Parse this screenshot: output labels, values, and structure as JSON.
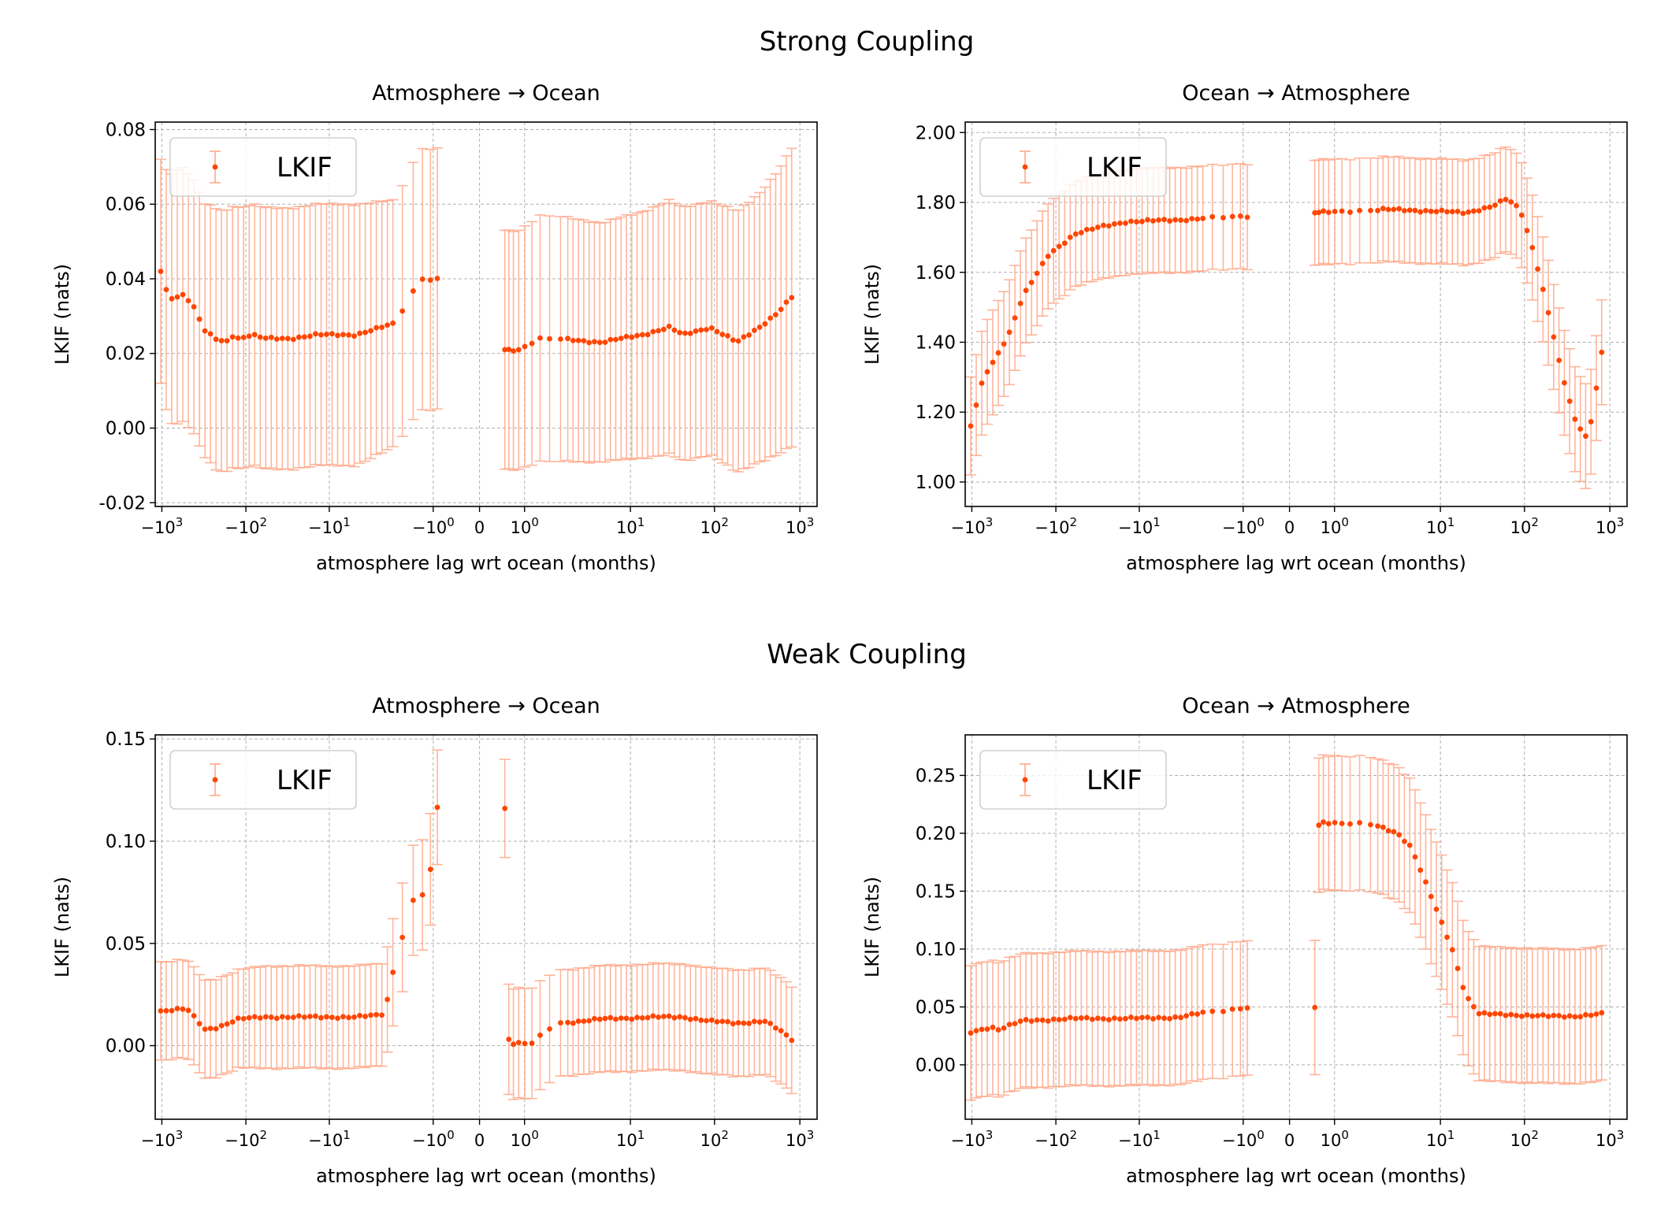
{
  "figure": {
    "row_titles": [
      "Strong Coupling",
      "Weak Coupling"
    ]
  },
  "colors": {
    "marker": "#ff4500",
    "errorbar": "#ffa98a",
    "grid": "#b0b0b0",
    "axis": "#000000"
  },
  "chart_data": [
    {
      "type": "scatter",
      "row": "Strong Coupling",
      "title": "Atmosphere → Ocean",
      "xlabel": "atmosphere lag wrt ocean (months)",
      "ylabel": "LKIF (nats)",
      "xscale": "symlog",
      "xticks": [
        "-10³",
        "-10²",
        "-10¹",
        "-10⁰",
        "0",
        "10⁰",
        "10¹",
        "10²",
        "10³"
      ],
      "ylim": [
        -0.021,
        0.082
      ],
      "yticks": [
        -0.02,
        0.0,
        0.02,
        0.04,
        0.06,
        0.08
      ],
      "yticklabels": [
        "-0.02",
        "0.00",
        "0.02",
        "0.04",
        "0.06",
        "0.08"
      ],
      "legend": "upper left",
      "grid": true,
      "series": [
        {
          "name": "LKIF",
          "segments": [
            {
              "side": "neg",
              "from": -600,
              "to": -0.5,
              "keys": [
                0,
                0.03,
                0.06,
                0.09,
                0.13,
                0.17,
                0.21,
                0.25,
                0.28,
                0.3,
                0.35,
                0.4,
                0.5,
                0.6,
                0.75,
                0.9,
                0.95,
                1
              ],
              "vals": [
                0.042,
                0.035,
                0.035,
                0.036,
                0.032,
                0.026,
                0.024,
                0.023,
                0.025,
                0.024,
                0.025,
                0.024,
                0.024,
                0.025,
                0.025,
                0.028,
                0.04,
                0.04
              ],
              "errs": [
                0.03,
                0.033,
                0.034,
                0.034,
                0.034,
                0.034,
                0.035,
                0.035,
                0.035,
                0.035,
                0.035,
                0.035,
                0.035,
                0.035,
                0.035,
                0.033,
                0.035,
                0.035
              ]
            },
            {
              "side": "pos",
              "from": 0.3,
              "to": 500,
              "keys": [
                0,
                0.06,
                0.12,
                0.3,
                0.45,
                0.55,
                0.6,
                0.7,
                0.8,
                0.88,
                0.95,
                1
              ],
              "vals": [
                0.021,
                0.021,
                0.024,
                0.023,
                0.025,
                0.027,
                0.025,
                0.027,
                0.023,
                0.027,
                0.031,
                0.035
              ],
              "errs": [
                0.032,
                0.032,
                0.033,
                0.032,
                0.033,
                0.034,
                0.034,
                0.034,
                0.035,
                0.036,
                0.038,
                0.04
              ]
            }
          ]
        }
      ]
    },
    {
      "type": "scatter",
      "row": "Strong Coupling",
      "title": "Ocean → Atmosphere",
      "xlabel": "atmosphere lag wrt ocean (months)",
      "ylabel": "LKIF (nats)",
      "xscale": "symlog",
      "xticks": [
        "-10³",
        "-10²",
        "-10¹",
        "-10⁰",
        "0",
        "10⁰",
        "10¹",
        "10²",
        "10³"
      ],
      "ylim": [
        0.93,
        2.03
      ],
      "yticks": [
        1.0,
        1.2,
        1.4,
        1.6,
        1.8,
        2.0
      ],
      "yticklabels": [
        "1.00",
        "1.20",
        "1.40",
        "1.60",
        "1.80",
        "2.00"
      ],
      "legend": "upper left",
      "grid": true,
      "series": [
        {
          "name": "LKIF",
          "segments": [
            {
              "side": "neg",
              "from": -600,
              "to": -0.5,
              "keys": [
                0,
                0.05,
                0.1,
                0.15,
                0.2,
                0.3,
                0.4,
                0.5,
                0.6,
                0.8,
                1
              ],
              "vals": [
                1.16,
                1.3,
                1.36,
                1.43,
                1.53,
                1.65,
                1.71,
                1.73,
                1.745,
                1.75,
                1.76
              ],
              "errs": [
                0.14,
                0.15,
                0.15,
                0.15,
                0.15,
                0.15,
                0.15,
                0.15,
                0.15,
                0.15,
                0.15
              ]
            },
            {
              "side": "pos",
              "from": 0.3,
              "to": 500,
              "keys": [
                0,
                0.2,
                0.4,
                0.5,
                0.6,
                0.65,
                0.7,
                0.75,
                0.8,
                0.85,
                0.9,
                0.95,
                1
              ],
              "vals": [
                1.77,
                1.78,
                1.775,
                1.77,
                1.79,
                1.81,
                1.78,
                1.66,
                1.5,
                1.32,
                1.18,
                1.12,
                1.37
              ],
              "errs": [
                0.15,
                0.15,
                0.15,
                0.15,
                0.15,
                0.15,
                0.15,
                0.15,
                0.15,
                0.15,
                0.15,
                0.15,
                0.15
              ]
            }
          ]
        }
      ]
    },
    {
      "type": "scatter",
      "row": "Weak Coupling",
      "title": "Atmosphere → Ocean",
      "xlabel": "atmosphere lag wrt ocean (months)",
      "ylabel": "LKIF (nats)",
      "xscale": "symlog",
      "xticks": [
        "-10³",
        "-10²",
        "-10¹",
        "-10⁰",
        "0",
        "10⁰",
        "10¹",
        "10²",
        "10³"
      ],
      "ylim": [
        -0.036,
        0.152
      ],
      "yticks": [
        0.0,
        0.05,
        0.1,
        0.15
      ],
      "yticklabels": [
        "0.00",
        "0.05",
        "0.10",
        "0.15"
      ],
      "legend": "upper left",
      "grid": true,
      "series": [
        {
          "name": "LKIF",
          "segments": [
            {
              "side": "neg",
              "from": -600,
              "to": -0.5,
              "keys": [
                0,
                0.1,
                0.17,
                0.22,
                0.3,
                0.4,
                0.6,
                0.75,
                0.85,
                0.88,
                0.94,
                0.97,
                1
              ],
              "vals": [
                0.017,
                0.018,
                0.008,
                0.009,
                0.013,
                0.014,
                0.014,
                0.014,
                0.015,
                0.025,
                0.074,
                0.074,
                0.116
              ],
              "errs": [
                0.024,
                0.024,
                0.024,
                0.024,
                0.024,
                0.025,
                0.025,
                0.025,
                0.025,
                0.026,
                0.027,
                0.027,
                0.028
              ]
            },
            {
              "side": "pos",
              "from": 0.3,
              "to": 500,
              "keys": [
                0,
                0.02,
                0.1,
                0.15,
                0.3,
                0.5,
                0.6,
                0.7,
                0.8,
                0.9,
                0.95,
                1
              ],
              "vals": [
                0.116,
                0.001,
                0.001,
                0.011,
                0.013,
                0.014,
                0.014,
                0.012,
                0.011,
                0.012,
                0.008,
                0.003
              ],
              "errs": [
                0.024,
                0.027,
                0.027,
                0.026,
                0.026,
                0.026,
                0.026,
                0.026,
                0.026,
                0.026,
                0.026,
                0.026
              ]
            }
          ]
        }
      ]
    },
    {
      "type": "scatter",
      "row": "Weak Coupling",
      "title": "Ocean → Atmosphere",
      "xlabel": "atmosphere lag wrt ocean (months)",
      "ylabel": "LKIF (nats)",
      "xscale": "symlog",
      "xticks": [
        "-10³",
        "-10²",
        "-10¹",
        "-10⁰",
        "0",
        "10⁰",
        "10¹",
        "10²",
        "10³"
      ],
      "ylim": [
        -0.047,
        0.285
      ],
      "yticks": [
        0.0,
        0.05,
        0.1,
        0.15,
        0.2,
        0.25
      ],
      "yticklabels": [
        "0.00",
        "0.05",
        "0.10",
        "0.15",
        "0.20",
        "0.25"
      ],
      "legend": "upper left",
      "grid": true,
      "series": [
        {
          "name": "LKIF",
          "segments": [
            {
              "side": "neg",
              "from": -600,
              "to": -0.5,
              "keys": [
                0,
                0.08,
                0.1,
                0.2,
                0.4,
                0.6,
                0.8,
                0.92,
                1
              ],
              "vals": [
                0.028,
                0.033,
                0.03,
                0.038,
                0.04,
                0.04,
                0.041,
                0.046,
                0.05
              ],
              "errs": [
                0.058,
                0.058,
                0.058,
                0.058,
                0.058,
                0.058,
                0.058,
                0.058,
                0.058
              ]
            },
            {
              "side": "pos",
              "from": 0.3,
              "to": 500,
              "keys": [
                0,
                0.02,
                0.15,
                0.25,
                0.3,
                0.45,
                0.5,
                0.55,
                0.7,
                0.8,
                0.9,
                1
              ],
              "vals": [
                0.05,
                0.21,
                0.208,
                0.2,
                0.188,
                0.1,
                0.06,
                0.044,
                0.043,
                0.042,
                0.042,
                0.044
              ],
              "errs": [
                0.058,
                0.058,
                0.058,
                0.058,
                0.058,
                0.058,
                0.058,
                0.058,
                0.058,
                0.058,
                0.058,
                0.058
              ]
            }
          ]
        }
      ]
    }
  ]
}
